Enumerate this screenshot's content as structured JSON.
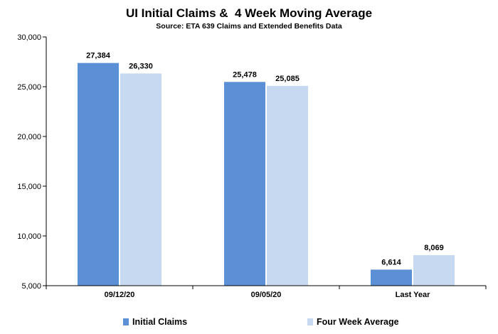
{
  "chart_data": {
    "type": "bar",
    "title": "UI Initial Claims &  4 Week Moving Average",
    "subtitle": "Source: ETA 639 Claims and Extended Benefits Data",
    "categories": [
      "09/12/20",
      "09/05/20",
      "Last Year"
    ],
    "series": [
      {
        "name": "Initial Claims",
        "values": [
          27384,
          25478,
          6614
        ],
        "labels": [
          "27,384",
          "25,478",
          "6,614"
        ],
        "color": "#5b8fd6"
      },
      {
        "name": "Four Week Average",
        "values": [
          26330,
          25085,
          8069
        ],
        "labels": [
          "26,330",
          "25,085",
          "8,069"
        ],
        "color": "#c6d9f1"
      }
    ],
    "ylim": [
      5000,
      30000
    ],
    "yticks": [
      5000,
      10000,
      15000,
      20000,
      25000,
      30000
    ],
    "ytick_labels": [
      "5,000",
      "10,000",
      "15,000",
      "20,000",
      "25,000",
      "30,000"
    ],
    "xlabel": "",
    "ylabel": "",
    "grid": false,
    "legend_position": "bottom"
  }
}
